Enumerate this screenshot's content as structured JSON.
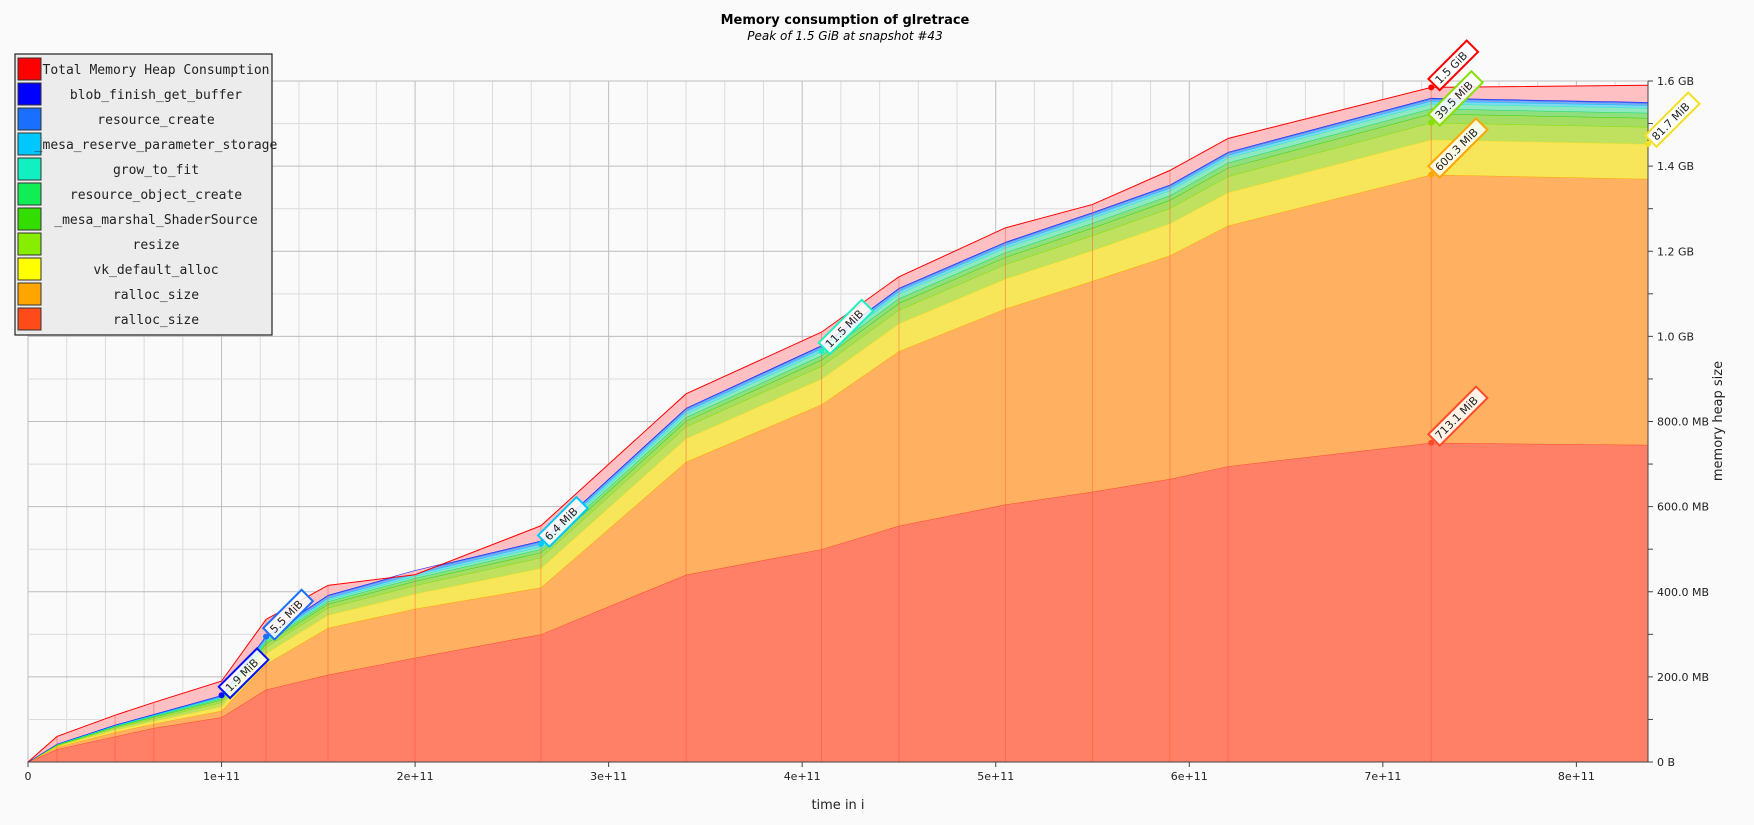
{
  "colors": {
    "grid_major": "#bdbdbd",
    "grid_minor": "#dcdcdc",
    "background": "#fafafa"
  },
  "chart_data": {
    "type": "area",
    "stacked": true,
    "title": "Memory consumption of glretrace",
    "subtitle": "Peak of 1.5 GiB at snapshot #43",
    "xlabel": "time in i",
    "ylabel": "memory heap size",
    "xlim": [
      0,
      837000000000
    ],
    "ylim": [
      0,
      1600000000
    ],
    "grid": true,
    "legend_position": "top-left",
    "x_ticks": [
      {
        "value": 0,
        "label": "0"
      },
      {
        "value": 100000000000,
        "label": "1e+11"
      },
      {
        "value": 200000000000,
        "label": "2e+11"
      },
      {
        "value": 300000000000,
        "label": "3e+11"
      },
      {
        "value": 400000000000,
        "label": "4e+11"
      },
      {
        "value": 500000000000,
        "label": "5e+11"
      },
      {
        "value": 600000000000,
        "label": "6e+11"
      },
      {
        "value": 700000000000,
        "label": "7e+11"
      },
      {
        "value": 800000000000,
        "label": "8e+11"
      }
    ],
    "y_ticks": [
      {
        "value": 0,
        "label": "0 B"
      },
      {
        "value": 200000000,
        "label": "200.0 MB"
      },
      {
        "value": 400000000,
        "label": "400.0 MB"
      },
      {
        "value": 600000000,
        "label": "600.0 MB"
      },
      {
        "value": 800000000,
        "label": "800.0 MB"
      },
      {
        "value": 1000000000,
        "label": "1.0 GB"
      },
      {
        "value": 1200000000,
        "label": "1.2 GB"
      },
      {
        "value": 1400000000,
        "label": "1.4 GB"
      },
      {
        "value": 1600000000,
        "label": "1.6 GB"
      }
    ],
    "x": [
      0,
      15000000000,
      45000000000,
      65000000000,
      100000000000,
      123000000000,
      155000000000,
      200000000000,
      265000000000,
      340000000000,
      410000000000,
      450000000000,
      505000000000,
      550000000000,
      590000000000,
      620000000000,
      725000000000,
      837000000000
    ],
    "total": [
      0,
      60000000,
      110000000,
      140000000,
      190000000,
      335000000,
      415000000,
      440000000,
      555000000,
      865000000,
      1010000000,
      1140000000,
      1255000000,
      1310000000,
      1390000000,
      1465000000,
      1585000000,
      1590000000
    ],
    "series": [
      {
        "name": "ralloc_size",
        "color": "#ff4a2a",
        "fill": "#ff7f67",
        "values": [
          0,
          30000000,
          60000000,
          80000000,
          105000000,
          170000000,
          205000000,
          245000000,
          300000000,
          440000000,
          500000000,
          555000000,
          605000000,
          635000000,
          665000000,
          695000000,
          750000000,
          745000000
        ]
      },
      {
        "name": "ralloc_size",
        "color": "#ffa500",
        "fill": "#ffb161",
        "values": [
          0,
          5000000,
          10000000,
          10000000,
          15000000,
          60000000,
          110000000,
          115000000,
          110000000,
          265000000,
          340000000,
          410000000,
          460000000,
          495000000,
          525000000,
          565000000,
          630000000,
          625000000
        ]
      },
      {
        "name": "vk_default_alloc",
        "color": "#f2e020",
        "fill": "#f7e65a",
        "values": [
          0,
          2000000,
          5000000,
          6000000,
          10000000,
          25000000,
          30000000,
          35000000,
          45000000,
          55000000,
          60000000,
          65000000,
          70000000,
          72000000,
          75000000,
          78000000,
          82000000,
          82000000
        ]
      },
      {
        "name": "resize",
        "color": "#84e000",
        "fill": "#c0e060",
        "values": [
          0,
          2000000,
          5000000,
          6000000,
          10000000,
          15000000,
          17000000,
          20000000,
          25000000,
          28000000,
          30000000,
          32000000,
          34000000,
          35000000,
          36000000,
          38000000,
          40000000,
          40000000
        ]
      },
      {
        "name": "_mesa_marshal_ShaderSource",
        "color": "#33d400",
        "fill": "#a5dd62",
        "values": [
          0,
          1000000,
          3000000,
          4000000,
          6000000,
          8000000,
          9000000,
          10000000,
          12000000,
          13000000,
          15000000,
          16000000,
          17000000,
          18000000,
          19000000,
          20000000,
          21000000,
          21000000
        ]
      },
      {
        "name": "resource_object_create",
        "color": "#10e060",
        "fill": "#8fde80",
        "values": [
          0,
          1000000,
          1000000,
          2000000,
          3000000,
          5000000,
          6000000,
          7000000,
          8000000,
          9000000,
          10000000,
          11000000,
          11000000,
          11000000,
          11000000,
          12000000,
          12000000,
          12000000
        ]
      },
      {
        "name": "grow_to_fit",
        "color": "#20f0c0",
        "fill": "#8fe8c0",
        "values": [
          0,
          500000,
          1000000,
          1000000,
          2000000,
          3000000,
          4000000,
          5000000,
          6000000,
          8000000,
          10000000,
          11000000,
          11000000,
          11500000,
          11500000,
          11500000,
          11500000,
          11500000
        ]
      },
      {
        "name": "_mesa_reserve_parameter_storage",
        "color": "#00c8ff",
        "fill": "#80d8f0",
        "values": [
          0,
          500000,
          1000000,
          1000000,
          2000000,
          3000000,
          4000000,
          5000000,
          6400000,
          6400000,
          6400000,
          6400000,
          6400000,
          6400000,
          6400000,
          6400000,
          6400000,
          6400000
        ]
      },
      {
        "name": "resource_create",
        "color": "#1a6fff",
        "fill": "#7fa8f0",
        "values": [
          0,
          500000,
          1000000,
          1500000,
          2000000,
          5500000,
          5500000,
          5500000,
          5500000,
          5500000,
          5500000,
          5500000,
          5500000,
          5500000,
          5500000,
          5500000,
          5500000,
          5500000
        ]
      },
      {
        "name": "blob_finish_get_buffer",
        "color": "#0010ff",
        "fill": "#7f88f0",
        "values": [
          0,
          200000,
          500000,
          1000000,
          1900000,
          1900000,
          1900000,
          1900000,
          1900000,
          1900000,
          1900000,
          1900000,
          1900000,
          1900000,
          1900000,
          1900000,
          1900000,
          1900000
        ]
      }
    ],
    "total_series": {
      "name": "Total Memory Heap Consumption",
      "color": "#ff0000",
      "fill": "#ffc0c4"
    },
    "annotations": [
      {
        "label": "1.9 MiB",
        "x": 100000000000,
        "series_index": 9,
        "color": "#0010ff"
      },
      {
        "label": "5.5 MiB",
        "x": 123000000000,
        "series_index": 8,
        "color": "#1a6fff"
      },
      {
        "label": "6.4 MiB",
        "x": 265000000000,
        "series_index": 7,
        "color": "#00c8ff"
      },
      {
        "label": "11.5 MiB",
        "x": 410000000000,
        "series_index": 6,
        "color": "#20f0c0"
      },
      {
        "label": "39.5 MiB",
        "x": 725000000000,
        "series_index": 3,
        "color": "#84e000"
      },
      {
        "label": "600.3 MiB",
        "x": 725000000000,
        "series_index": 1,
        "color": "#ffa500"
      },
      {
        "label": "713.1 MiB",
        "x": 725000000000,
        "series_index": 0,
        "color": "#ff4a2a"
      },
      {
        "label": "1.5 GiB",
        "x": 725000000000,
        "series_index": -1,
        "color": "#ff0000"
      },
      {
        "label": "81.7 MiB",
        "x": 837000000000,
        "series_index": 2,
        "color": "#f2e020"
      }
    ],
    "legend": [
      {
        "label": "Total Memory Heap Consumption",
        "color": "#ff0000"
      },
      {
        "label": "blob_finish_get_buffer",
        "color": "#0000ff"
      },
      {
        "label": "resource_create",
        "color": "#1a6fff"
      },
      {
        "label": "_mesa_reserve_parameter_storage",
        "color": "#00c8ff"
      },
      {
        "label": "grow_to_fit",
        "color": "#11f0c0"
      },
      {
        "label": "resource_object_create",
        "color": "#11ee55"
      },
      {
        "label": "_mesa_marshal_ShaderSource",
        "color": "#33dd00"
      },
      {
        "label": "resize",
        "color": "#88ee00"
      },
      {
        "label": "vk_default_alloc",
        "color": "#ffff00"
      },
      {
        "label": "ralloc_size",
        "color": "#ffa500"
      },
      {
        "label": "ralloc_size",
        "color": "#ff4a1a"
      }
    ]
  }
}
